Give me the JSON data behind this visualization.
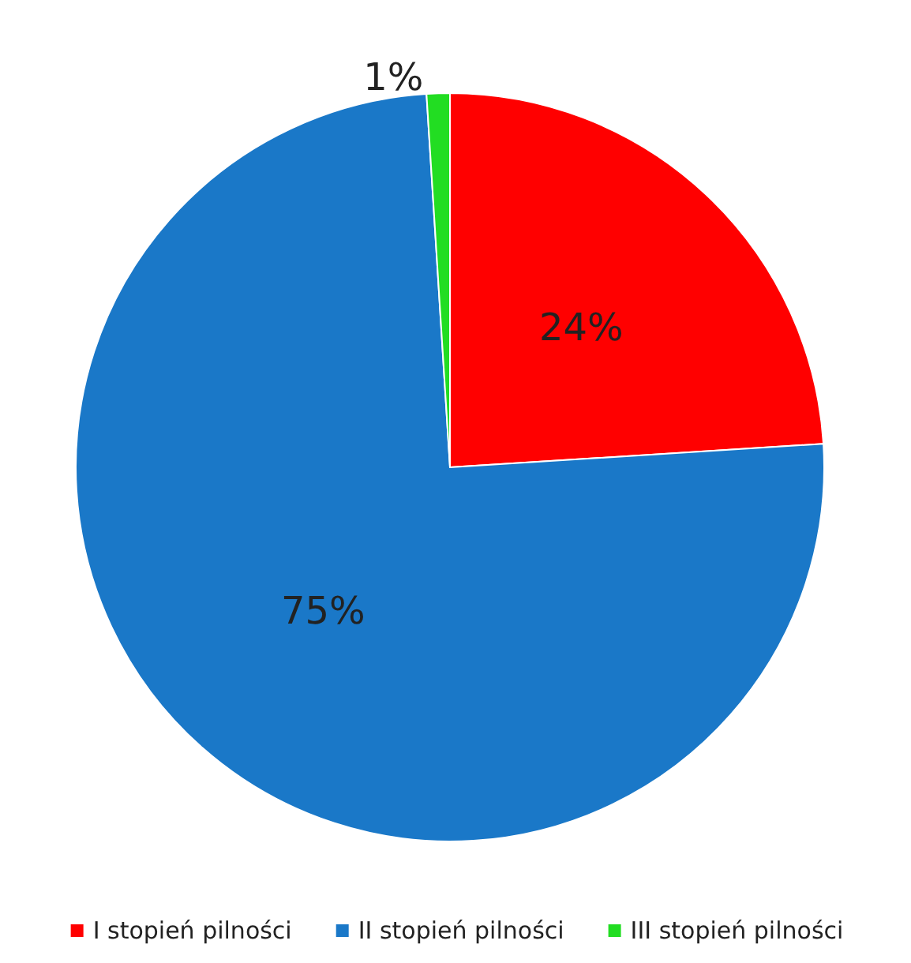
{
  "chart_data": {
    "type": "pie",
    "categories": [
      "I stopień pilności",
      "II stopień pilności",
      "III stopień pilności"
    ],
    "values": [
      24,
      75,
      1
    ],
    "colors": [
      "#ff0000",
      "#1a78c8",
      "#22dd22"
    ],
    "value_labels": [
      "24%",
      "75%",
      "1%"
    ],
    "legend": "bottom"
  }
}
